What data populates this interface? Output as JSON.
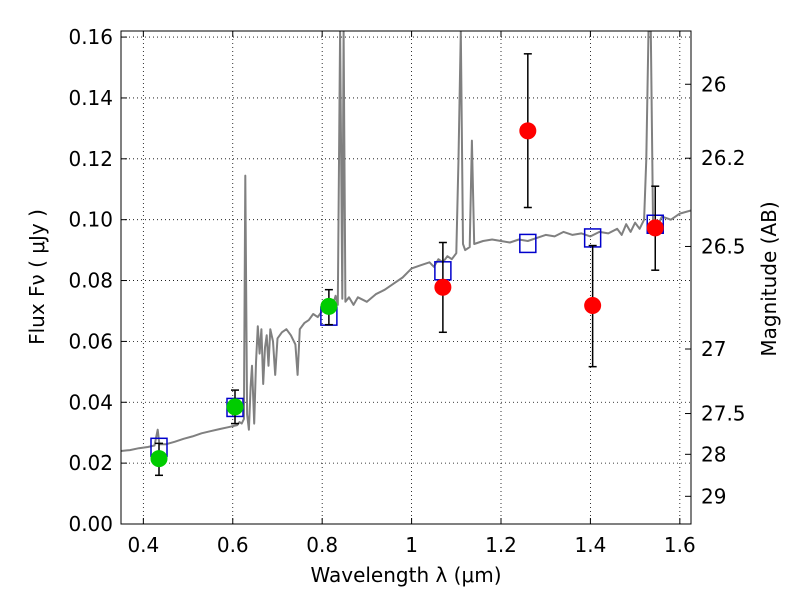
{
  "chart_data": {
    "type": "scatter",
    "xlabel": "Wavelength  λ (μm)",
    "ylabel": "Flux  Fν  ( μJy )",
    "ylabel_right": "Magnitude (AB)",
    "xlim": [
      0.35,
      1.625
    ],
    "ylim": [
      0.0,
      0.162
    ],
    "grid": true,
    "x_ticks": [
      0.4,
      0.6,
      0.8,
      1.0,
      1.2,
      1.4,
      1.6
    ],
    "x_tick_labels": [
      "0.4",
      "0.6",
      "0.8",
      "1",
      "1.2",
      "1.4",
      "1.6"
    ],
    "y_ticks": [
      0.0,
      0.02,
      0.04,
      0.06,
      0.08,
      0.1,
      0.12,
      0.14,
      0.16
    ],
    "y_tick_labels": [
      "0.00",
      "0.02",
      "0.04",
      "0.06",
      "0.08",
      "0.10",
      "0.12",
      "0.14",
      "0.16"
    ],
    "right_ticks": [
      {
        "label": "26",
        "flux": 0.1445
      },
      {
        "label": "26.2",
        "flux": 0.1202
      },
      {
        "label": "26.5",
        "flux": 0.0912
      },
      {
        "label": "27",
        "flux": 0.0575
      },
      {
        "label": "27.5",
        "flux": 0.0363
      },
      {
        "label": "28",
        "flux": 0.0229
      },
      {
        "label": "29",
        "flux": 0.0091
      }
    ],
    "series": [
      {
        "kind": "spectrum",
        "color": "#808080",
        "points": [
          [
            0.35,
            0.024
          ],
          [
            0.37,
            0.0243
          ],
          [
            0.39,
            0.0249
          ],
          [
            0.41,
            0.0253
          ],
          [
            0.425,
            0.0258
          ],
          [
            0.432,
            0.031
          ],
          [
            0.436,
            0.0262
          ],
          [
            0.45,
            0.0262
          ],
          [
            0.47,
            0.027
          ],
          [
            0.49,
            0.028
          ],
          [
            0.51,
            0.0288
          ],
          [
            0.53,
            0.0298
          ],
          [
            0.55,
            0.0305
          ],
          [
            0.57,
            0.0312
          ],
          [
            0.59,
            0.0318
          ],
          [
            0.61,
            0.0325
          ],
          [
            0.615,
            0.0335
          ],
          [
            0.62,
            0.033
          ],
          [
            0.625,
            0.0345
          ],
          [
            0.628,
            0.1145
          ],
          [
            0.632,
            0.036
          ],
          [
            0.636,
            0.031
          ],
          [
            0.64,
            0.045
          ],
          [
            0.643,
            0.052
          ],
          [
            0.648,
            0.033
          ],
          [
            0.652,
            0.053
          ],
          [
            0.656,
            0.065
          ],
          [
            0.66,
            0.056
          ],
          [
            0.664,
            0.064
          ],
          [
            0.668,
            0.046
          ],
          [
            0.672,
            0.058
          ],
          [
            0.676,
            0.062
          ],
          [
            0.68,
            0.052
          ],
          [
            0.684,
            0.064
          ],
          [
            0.69,
            0.06
          ],
          [
            0.695,
            0.049
          ],
          [
            0.7,
            0.061
          ],
          [
            0.71,
            0.063
          ],
          [
            0.72,
            0.064
          ],
          [
            0.73,
            0.062
          ],
          [
            0.74,
            0.059
          ],
          [
            0.745,
            0.049
          ],
          [
            0.75,
            0.064
          ],
          [
            0.76,
            0.066
          ],
          [
            0.77,
            0.067
          ],
          [
            0.78,
            0.069
          ],
          [
            0.79,
            0.068
          ],
          [
            0.8,
            0.07
          ],
          [
            0.81,
            0.071
          ],
          [
            0.82,
            0.07
          ],
          [
            0.83,
            0.075
          ],
          [
            0.835,
            0.072
          ],
          [
            0.84,
            0.162
          ],
          [
            0.845,
            0.074
          ],
          [
            0.848,
            0.162
          ],
          [
            0.852,
            0.073
          ],
          [
            0.86,
            0.0745
          ],
          [
            0.87,
            0.072
          ],
          [
            0.88,
            0.0745
          ],
          [
            0.9,
            0.073
          ],
          [
            0.92,
            0.0755
          ],
          [
            0.94,
            0.077
          ],
          [
            0.96,
            0.079
          ],
          [
            0.98,
            0.081
          ],
          [
            1.0,
            0.084
          ],
          [
            1.02,
            0.085
          ],
          [
            1.04,
            0.086
          ],
          [
            1.05,
            0.0845
          ],
          [
            1.06,
            0.087
          ],
          [
            1.07,
            0.086
          ],
          [
            1.08,
            0.088
          ],
          [
            1.09,
            0.087
          ],
          [
            1.1,
            0.089
          ],
          [
            1.105,
            0.12
          ],
          [
            1.11,
            0.162
          ],
          [
            1.115,
            0.092
          ],
          [
            1.12,
            0.09
          ],
          [
            1.13,
            0.091
          ],
          [
            1.135,
            0.126
          ],
          [
            1.14,
            0.092
          ],
          [
            1.16,
            0.093
          ],
          [
            1.18,
            0.0935
          ],
          [
            1.2,
            0.093
          ],
          [
            1.22,
            0.0925
          ],
          [
            1.24,
            0.0935
          ],
          [
            1.26,
            0.093
          ],
          [
            1.28,
            0.094
          ],
          [
            1.3,
            0.095
          ],
          [
            1.32,
            0.0945
          ],
          [
            1.34,
            0.096
          ],
          [
            1.36,
            0.095
          ],
          [
            1.38,
            0.0955
          ],
          [
            1.4,
            0.0945
          ],
          [
            1.42,
            0.096
          ],
          [
            1.44,
            0.0955
          ],
          [
            1.46,
            0.097
          ],
          [
            1.47,
            0.095
          ],
          [
            1.48,
            0.0985
          ],
          [
            1.49,
            0.096
          ],
          [
            1.5,
            0.099
          ],
          [
            1.51,
            0.097
          ],
          [
            1.52,
            0.1
          ],
          [
            1.525,
            0.12
          ],
          [
            1.53,
            0.162
          ],
          [
            1.535,
            0.162
          ],
          [
            1.54,
            0.1
          ],
          [
            1.55,
            0.098
          ],
          [
            1.56,
            0.101
          ],
          [
            1.58,
            0.1
          ],
          [
            1.6,
            0.102
          ],
          [
            1.625,
            0.103
          ]
        ]
      },
      {
        "kind": "model_bands",
        "marker": "open-square",
        "color": "#0000cc",
        "points": [
          [
            0.435,
            0.0252
          ],
          [
            0.605,
            0.0383
          ],
          [
            0.815,
            0.0683
          ],
          [
            1.07,
            0.0832
          ],
          [
            1.26,
            0.0922
          ],
          [
            1.405,
            0.094
          ],
          [
            1.545,
            0.0985
          ]
        ]
      },
      {
        "kind": "detections",
        "marker": "filled-circle",
        "color": "#00cc00",
        "points": [
          {
            "x": 0.435,
            "y": 0.0215,
            "err_lo": 0.0055,
            "err_hi": 0.005
          },
          {
            "x": 0.605,
            "y": 0.0385,
            "err_lo": 0.0055,
            "err_hi": 0.0055
          },
          {
            "x": 0.815,
            "y": 0.0715,
            "err_lo": 0.006,
            "err_hi": 0.0055
          }
        ]
      },
      {
        "kind": "detections",
        "marker": "filled-circle",
        "color": "#ff0000",
        "points": [
          {
            "x": 1.07,
            "y": 0.0778,
            "err_lo": 0.0148,
            "err_hi": 0.0147
          },
          {
            "x": 1.26,
            "y": 0.1292,
            "err_lo": 0.0252,
            "err_hi": 0.0253
          },
          {
            "x": 1.405,
            "y": 0.0718,
            "err_lo": 0.0201,
            "err_hi": 0.0197
          },
          {
            "x": 1.545,
            "y": 0.0973,
            "err_lo": 0.0139,
            "err_hi": 0.0137
          }
        ]
      }
    ]
  }
}
